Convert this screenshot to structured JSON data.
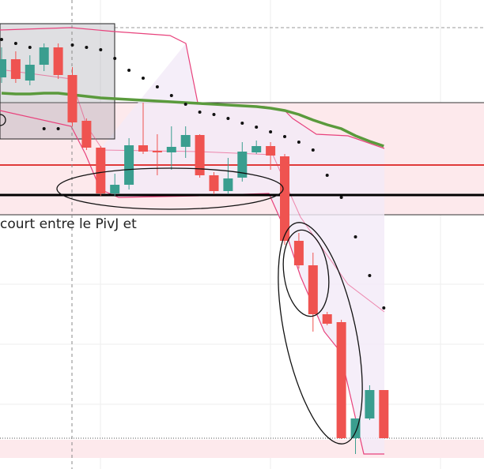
{
  "chart_data": {
    "type": "candlestick",
    "annotation": "court entre le PivJ et",
    "ylim": [
      0,
      594
    ],
    "up_color": "#3a9e8f",
    "down_color": "#ef5350",
    "open": [
      496,
      519,
      492,
      512,
      534,
      499,
      441,
      407,
      349,
      360,
      410,
      403,
      401,
      408,
      423,
      372,
      352,
      369,
      401,
      409,
      396,
      289,
      258,
      196,
      186,
      39,
      64,
      100
    ],
    "high": [
      534,
      529,
      524,
      539,
      539,
      509,
      444,
      409,
      374,
      419,
      464,
      424,
      434,
      434,
      424,
      376,
      394,
      414,
      416,
      414,
      399,
      299,
      274,
      199,
      189,
      64,
      106,
      100
    ],
    "low": [
      489,
      489,
      486,
      504,
      494,
      434,
      404,
      346,
      346,
      354,
      399,
      372,
      379,
      394,
      369,
      348,
      348,
      364,
      399,
      379,
      284,
      254,
      174,
      182,
      38,
      19,
      62,
      39
    ],
    "close": [
      519,
      494,
      512,
      534,
      499,
      439,
      407,
      349,
      360,
      410,
      402,
      401,
      408,
      423,
      372,
      352,
      368,
      402,
      409,
      397,
      289,
      258,
      196,
      184,
      39,
      64,
      100,
      39
    ],
    "series": [
      {
        "color": "#5a9a3c",
        "values": [
          476,
          475,
          475,
          476,
          476,
          474,
          472,
          470,
          469,
          468,
          467,
          466,
          465,
          464,
          463,
          462,
          461,
          460,
          459,
          457,
          454,
          449,
          442,
          436,
          431,
          422,
          415,
          409
        ]
      },
      {
        "color": "#111111",
        "values": [
          544,
          539,
          534,
          431,
          431,
          537,
          534,
          531,
          520,
          505,
          495,
          484,
          473,
          462,
          452,
          449,
          444,
          438,
          433,
          427,
          421,
          414,
          404,
          372,
          344,
          294,
          245,
          204
        ]
      }
    ]
  }
}
